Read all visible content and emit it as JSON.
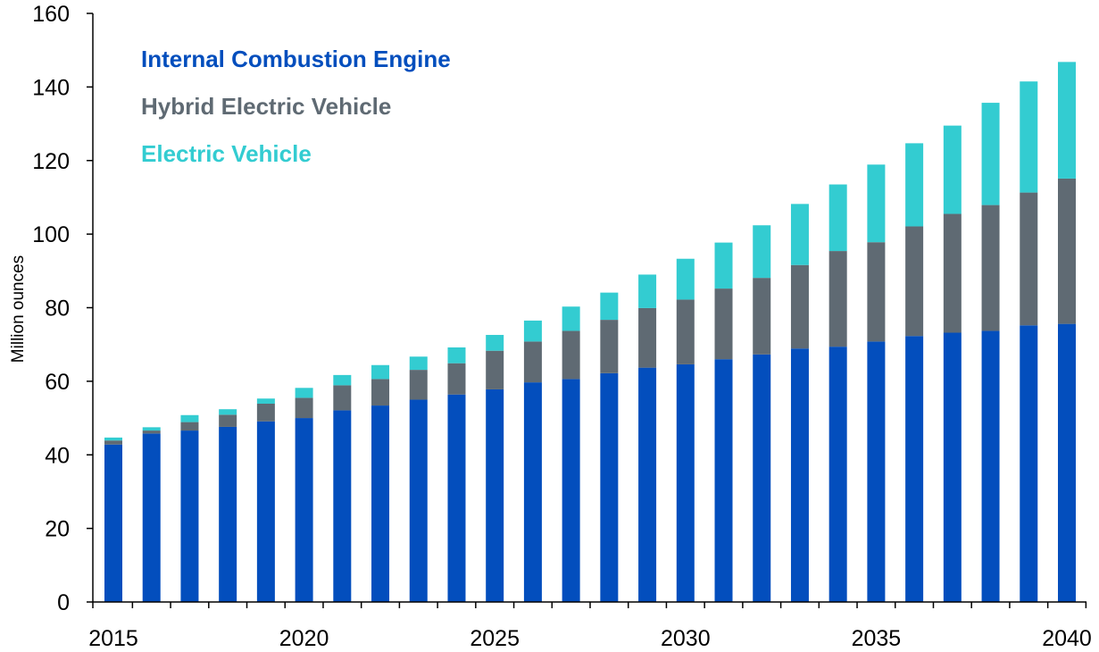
{
  "chart_data": {
    "type": "bar",
    "stacked": true,
    "title": "",
    "xlabel": "",
    "ylabel": "Million ounces",
    "ylim": [
      0,
      160
    ],
    "yticks": [
      0,
      20,
      40,
      60,
      80,
      100,
      120,
      140,
      160
    ],
    "xtick_labels": [
      "2015",
      "2020",
      "2025",
      "2030",
      "2035",
      "2040"
    ],
    "legend_position": "top-left",
    "grid": false,
    "categories": [
      "2015",
      "2016",
      "2017",
      "2018",
      "2019",
      "2020",
      "2021",
      "2022",
      "2023",
      "2024",
      "2025",
      "2026",
      "2027",
      "2028",
      "2029",
      "2030",
      "2031",
      "2032",
      "2033",
      "2034",
      "2035",
      "2036",
      "2037",
      "2038",
      "2039",
      "2040"
    ],
    "series": [
      {
        "name": "Internal Combustion Engine",
        "color": "#034ebd",
        "values": [
          42.8,
          45.8,
          46.6,
          47.6,
          49.1,
          50.0,
          52.1,
          53.4,
          55.0,
          56.4,
          57.8,
          59.7,
          60.6,
          62.2,
          63.7,
          64.6,
          66.0,
          67.3,
          68.9,
          69.4,
          70.8,
          72.3,
          73.2,
          73.7,
          75.2,
          75.6
        ]
      },
      {
        "name": "Hybrid Electric Vehicle",
        "color": "#5f6a73",
        "values": [
          1.1,
          0.8,
          2.3,
          3.3,
          4.8,
          5.5,
          6.8,
          7.2,
          8.1,
          8.5,
          10.5,
          11.1,
          13.1,
          14.5,
          16.2,
          17.6,
          19.2,
          20.8,
          22.7,
          26.0,
          27.0,
          29.8,
          32.3,
          34.2,
          36.1,
          39.5
        ]
      },
      {
        "name": "Electric Vehicle",
        "color": "#33ccd1",
        "values": [
          0.8,
          0.9,
          1.9,
          1.5,
          1.4,
          2.7,
          2.8,
          3.8,
          3.6,
          4.3,
          4.3,
          5.7,
          6.6,
          7.4,
          9.1,
          11.1,
          12.5,
          14.3,
          16.6,
          18.1,
          21.1,
          22.6,
          24.0,
          27.8,
          30.2,
          31.7
        ]
      }
    ]
  }
}
